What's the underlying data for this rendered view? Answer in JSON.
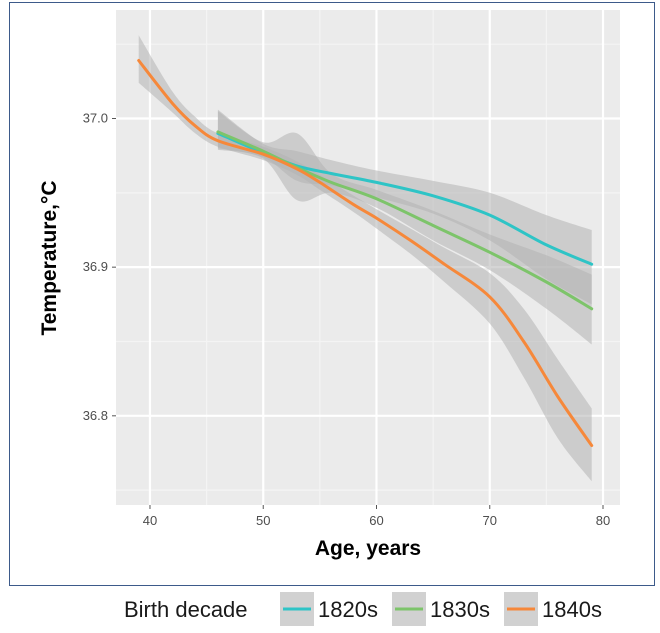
{
  "colors": {
    "panel_bg": "#ebebeb",
    "grid_major": "#ffffff",
    "grid_minor": "#f4f4f4",
    "ribbon": "#b3b3b3",
    "s1820": "#2ec4c6",
    "s1830": "#7dc46a",
    "s1840": "#f6883a",
    "frame": "#3d5a8a"
  },
  "chart_data": {
    "type": "line",
    "title": "",
    "xlabel": "Age, years",
    "ylabel": "Temperature,°C",
    "xlim": [
      37.0,
      81.5
    ],
    "ylim": [
      36.74,
      37.073
    ],
    "x_ticks": [
      40,
      50,
      60,
      70,
      80
    ],
    "x_tick_labels": [
      "40",
      "50",
      "60",
      "70",
      "80"
    ],
    "y_ticks": [
      36.8,
      36.9,
      37.0
    ],
    "y_tick_labels": [
      "36.8",
      "36.9",
      "37.0"
    ],
    "grid": true,
    "legend": {
      "title": "Birth decade",
      "position": "bottom",
      "entries": [
        "1820s",
        "1830s",
        "1840s"
      ]
    },
    "series": [
      {
        "name": "1820s",
        "color": "#2ec4c6",
        "x": [
          46,
          50,
          53,
          56,
          60,
          65,
          70,
          75,
          79
        ],
        "y": [
          36.99,
          36.977,
          36.968,
          36.963,
          36.957,
          36.948,
          36.935,
          36.915,
          36.902
        ],
        "lower": [
          36.98,
          36.974,
          36.958,
          36.955,
          36.947,
          36.936,
          36.918,
          36.892,
          36.875
        ],
        "upper": [
          37.006,
          36.983,
          36.978,
          36.972,
          36.965,
          36.958,
          36.95,
          36.935,
          36.925
        ]
      },
      {
        "name": "1830s",
        "color": "#7dc46a",
        "x": [
          46,
          50,
          53,
          56,
          60,
          65,
          70,
          75,
          79
        ],
        "y": [
          36.991,
          36.978,
          36.967,
          36.957,
          36.946,
          36.928,
          36.91,
          36.89,
          36.872
        ],
        "lower": [
          36.979,
          36.973,
          36.945,
          36.95,
          36.94,
          36.918,
          36.898,
          36.872,
          36.848
        ],
        "upper": [
          37.005,
          36.984,
          36.99,
          36.963,
          36.952,
          36.938,
          36.922,
          36.908,
          36.895
        ]
      },
      {
        "name": "1840s",
        "color": "#f6883a",
        "x": [
          39,
          42,
          44,
          46,
          50,
          53,
          55,
          58,
          60,
          63,
          66,
          70,
          73,
          76,
          79
        ],
        "y": [
          37.039,
          37.01,
          36.995,
          36.985,
          36.976,
          36.966,
          36.957,
          36.942,
          36.933,
          36.918,
          36.902,
          36.88,
          36.85,
          36.813,
          36.78
        ],
        "lower": [
          37.024,
          37.004,
          36.99,
          36.981,
          36.972,
          36.962,
          36.952,
          36.937,
          36.926,
          36.909,
          36.89,
          36.862,
          36.826,
          36.785,
          36.756
        ],
        "upper": [
          37.056,
          37.018,
          37.001,
          36.99,
          36.981,
          36.971,
          36.962,
          36.948,
          36.939,
          36.926,
          36.913,
          36.896,
          36.872,
          36.838,
          36.805
        ]
      }
    ]
  }
}
